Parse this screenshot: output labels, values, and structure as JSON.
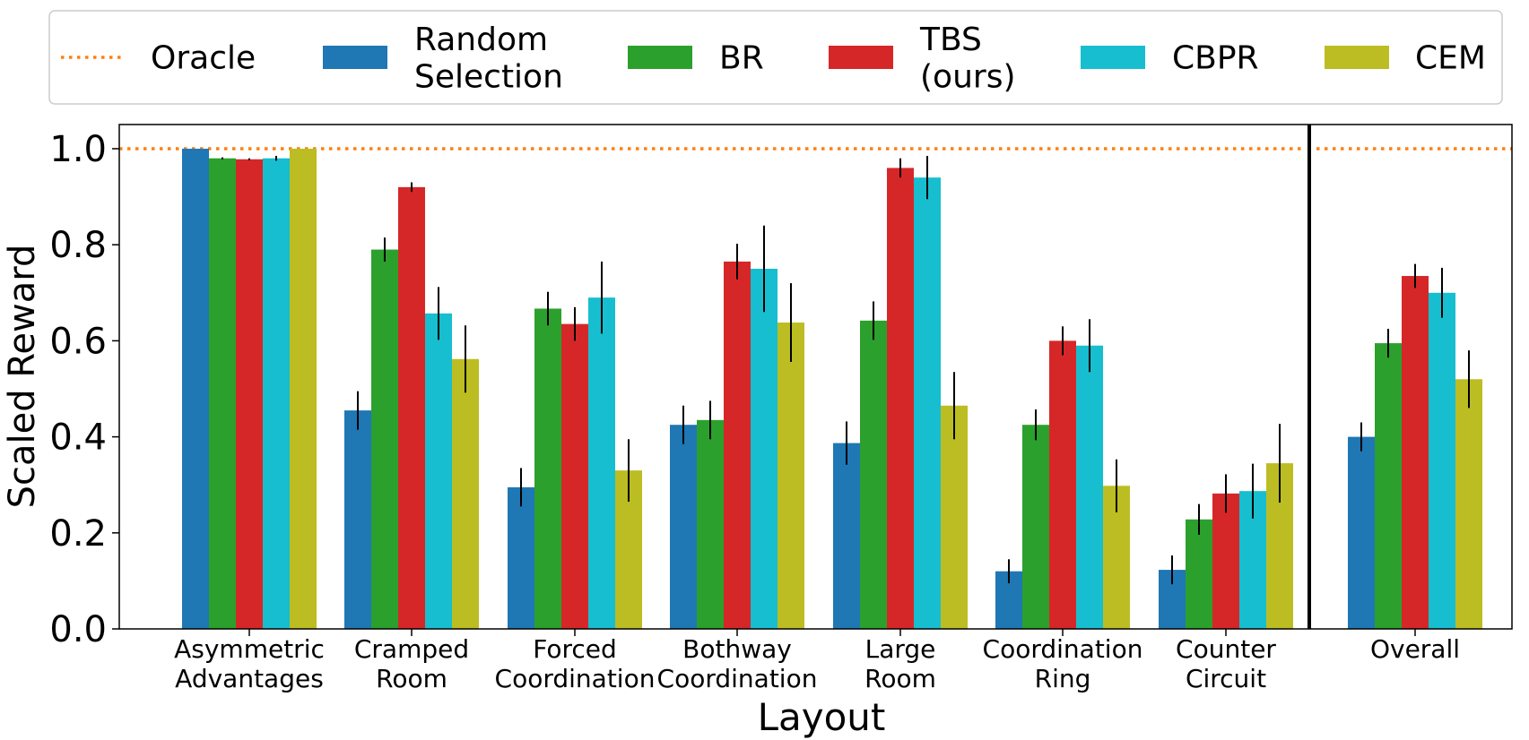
{
  "chart_data": {
    "type": "bar",
    "title": "",
    "xlabel": "Layout",
    "ylabel": "Scaled Reward",
    "ylim": [
      0,
      1.05
    ],
    "yticks": [
      0.0,
      0.2,
      0.4,
      0.6,
      0.8,
      1.0
    ],
    "ytick_labels": [
      "0.0",
      "0.2",
      "0.4",
      "0.6",
      "0.8",
      "1.0"
    ],
    "grid": false,
    "legend_position": "top",
    "categories": [
      [
        "Asymmetric",
        "Advantages"
      ],
      [
        "Cramped",
        "Room"
      ],
      [
        "Forced",
        "Coordination"
      ],
      [
        "Bothway",
        "Coordination"
      ],
      [
        "Large",
        "Room"
      ],
      [
        "Coordination",
        "Ring"
      ],
      [
        "Counter",
        "Circuit"
      ],
      [
        "Overall"
      ]
    ],
    "oracle": {
      "name": "Oracle",
      "value": 1.0,
      "color": "#ff7f0e",
      "style": "dotted"
    },
    "series": [
      {
        "name": [
          "Random",
          "Selection"
        ],
        "color": "#1f77b4",
        "values": [
          1.0,
          0.455,
          0.295,
          0.425,
          0.387,
          0.12,
          0.123,
          0.4
        ],
        "errors": [
          0.0,
          0.04,
          0.04,
          0.04,
          0.045,
          0.025,
          0.03,
          0.03
        ]
      },
      {
        "name": [
          "BR"
        ],
        "color": "#2ca02c",
        "values": [
          0.98,
          0.79,
          0.667,
          0.435,
          0.642,
          0.425,
          0.228,
          0.595
        ],
        "errors": [
          0.002,
          0.025,
          0.035,
          0.04,
          0.04,
          0.032,
          0.032,
          0.03
        ]
      },
      {
        "name": [
          "TBS",
          "(ours)"
        ],
        "color": "#d62728",
        "values": [
          0.978,
          0.92,
          0.635,
          0.765,
          0.96,
          0.6,
          0.282,
          0.735
        ],
        "errors": [
          0.002,
          0.01,
          0.035,
          0.037,
          0.02,
          0.03,
          0.04,
          0.025
        ]
      },
      {
        "name": [
          "CBPR"
        ],
        "color": "#17becf",
        "values": [
          0.98,
          0.657,
          0.69,
          0.75,
          0.94,
          0.59,
          0.287,
          0.7
        ],
        "errors": [
          0.005,
          0.055,
          0.075,
          0.09,
          0.045,
          0.055,
          0.057,
          0.052
        ]
      },
      {
        "name": [
          "CEM"
        ],
        "color": "#bcbd22",
        "values": [
          1.0,
          0.562,
          0.33,
          0.638,
          0.465,
          0.298,
          0.345,
          0.52
        ],
        "errors": [
          0.0,
          0.07,
          0.065,
          0.082,
          0.07,
          0.055,
          0.082,
          0.06
        ]
      }
    ]
  }
}
